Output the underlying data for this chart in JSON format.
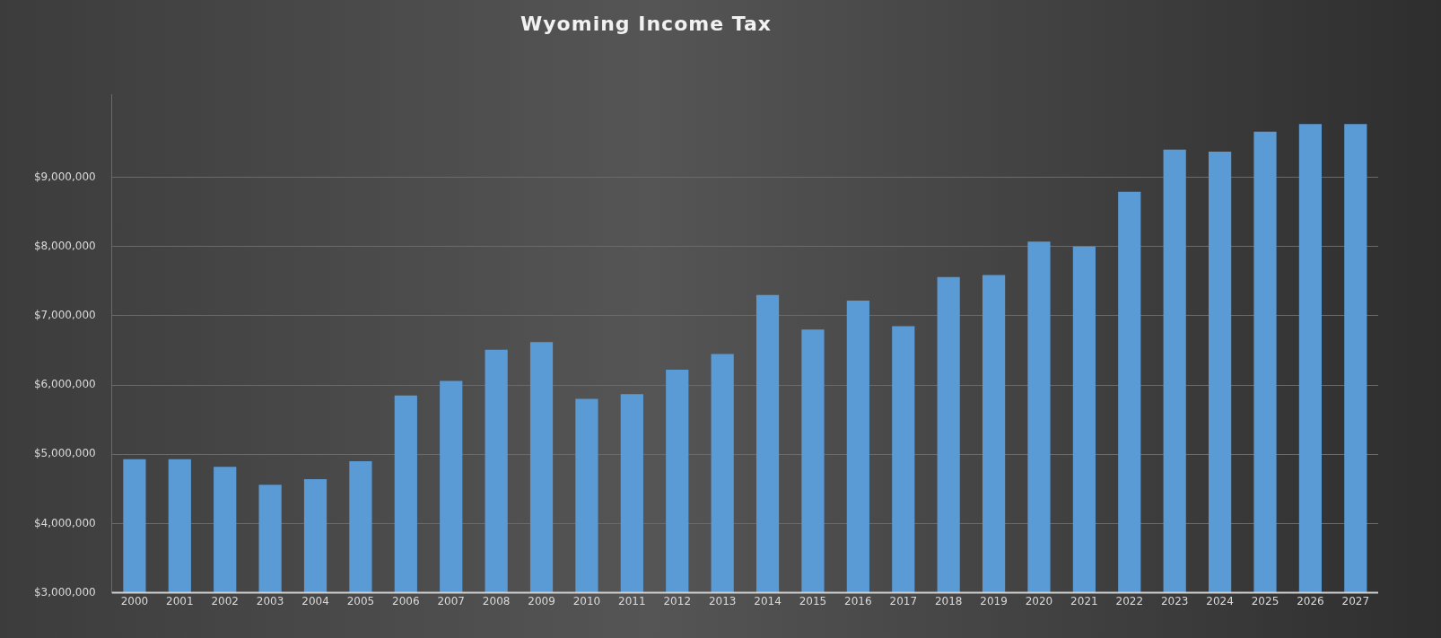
{
  "chart_data": {
    "type": "bar",
    "title": "Wyoming Income Tax",
    "categories": [
      "2000",
      "2001",
      "2002",
      "2003",
      "2004",
      "2005",
      "2006",
      "2007",
      "2008",
      "2009",
      "2010",
      "2011",
      "2012",
      "2013",
      "2014",
      "2015",
      "2016",
      "2017",
      "2018",
      "2019",
      "2020",
      "2021",
      "2022",
      "2023",
      "2024",
      "2025",
      "2026",
      "2027"
    ],
    "values": [
      4930000,
      4930000,
      4820000,
      4560000,
      4640000,
      4900000,
      5850000,
      6060000,
      6510000,
      6620000,
      5800000,
      5870000,
      6220000,
      6450000,
      7300000,
      6800000,
      7220000,
      6850000,
      7560000,
      7590000,
      8070000,
      8000000,
      8790000,
      9400000,
      9370000,
      9660000,
      9770000,
      9770000
    ],
    "color": "#5b9bd5",
    "ylim": [
      3000000,
      10200000
    ],
    "yticks": [
      {
        "value": 3000000,
        "label": "$3,000,000"
      },
      {
        "value": 4000000,
        "label": "$4,000,000"
      },
      {
        "value": 5000000,
        "label": "$5,000,000"
      },
      {
        "value": 6000000,
        "label": "$6,000,000"
      },
      {
        "value": 7000000,
        "label": "$7,000,000"
      },
      {
        "value": 8000000,
        "label": "$8,000,000"
      },
      {
        "value": 9000000,
        "label": "$9,000,000"
      }
    ],
    "grid": "y",
    "legend": false
  }
}
